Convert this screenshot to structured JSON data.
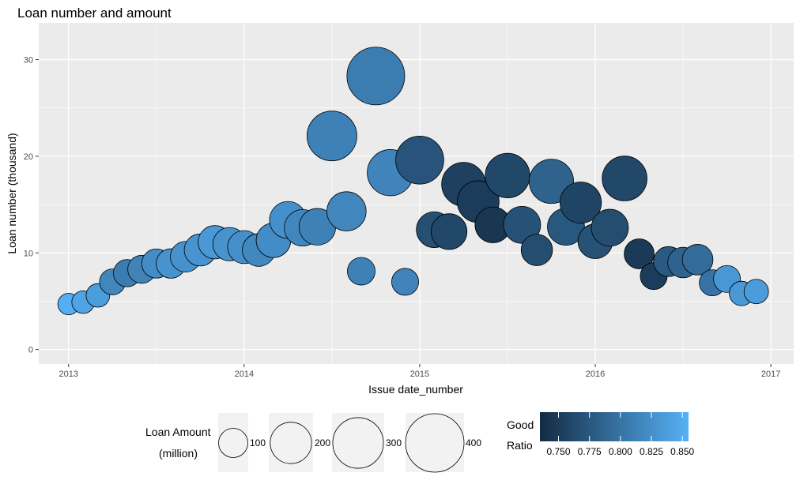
{
  "chart_data": {
    "type": "scatter",
    "title": "Loan number and amount",
    "xlabel": "Issue date_number",
    "ylabel": "Loan number (thousand)",
    "xlim": [
      2012.83,
      2017.13
    ],
    "ylim": [
      -1.5,
      33.8
    ],
    "x_ticks": [
      "2013",
      "2014",
      "2015",
      "2016",
      "2017"
    ],
    "y_ticks": [
      "0",
      "10",
      "20",
      "30"
    ],
    "grid": true,
    "size_legend": {
      "title_line1": "Loan Amount",
      "title_line2": "(million)",
      "values": [
        100,
        200,
        300,
        400
      ],
      "labels": [
        "100",
        "200",
        "300",
        "400"
      ]
    },
    "color_legend": {
      "title_line1": "Good",
      "title_line2": "Ratio",
      "min": 0.735,
      "max": 0.855,
      "low_color": "#132B43",
      "high_color": "#56B1F7",
      "ticks": [
        0.75,
        0.775,
        0.8,
        0.825,
        0.85
      ],
      "tick_labels": [
        "0.750",
        "0.775",
        "0.800",
        "0.825",
        "0.850"
      ]
    },
    "points": [
      {
        "x": 2013.0,
        "y": 4.7,
        "amount": 54,
        "ratio": 0.852
      },
      {
        "x": 2013.083,
        "y": 4.9,
        "amount": 60,
        "ratio": 0.843
      },
      {
        "x": 2013.167,
        "y": 5.6,
        "amount": 65,
        "ratio": 0.837
      },
      {
        "x": 2013.25,
        "y": 7.0,
        "amount": 78,
        "ratio": 0.817
      },
      {
        "x": 2013.333,
        "y": 7.9,
        "amount": 87,
        "ratio": 0.808
      },
      {
        "x": 2013.417,
        "y": 8.3,
        "amount": 92,
        "ratio": 0.814
      },
      {
        "x": 2013.5,
        "y": 8.9,
        "amount": 100,
        "ratio": 0.822
      },
      {
        "x": 2013.583,
        "y": 8.9,
        "amount": 102,
        "ratio": 0.828
      },
      {
        "x": 2013.667,
        "y": 9.6,
        "amount": 110,
        "ratio": 0.827
      },
      {
        "x": 2013.75,
        "y": 10.3,
        "amount": 120,
        "ratio": 0.829
      },
      {
        "x": 2013.833,
        "y": 11.1,
        "amount": 130,
        "ratio": 0.833
      },
      {
        "x": 2013.917,
        "y": 10.9,
        "amount": 130,
        "ratio": 0.828
      },
      {
        "x": 2014.0,
        "y": 10.6,
        "amount": 128,
        "ratio": 0.825
      },
      {
        "x": 2014.083,
        "y": 10.3,
        "amount": 126,
        "ratio": 0.818
      },
      {
        "x": 2014.167,
        "y": 11.3,
        "amount": 140,
        "ratio": 0.822
      },
      {
        "x": 2014.25,
        "y": 13.4,
        "amount": 160,
        "ratio": 0.825
      },
      {
        "x": 2014.333,
        "y": 12.6,
        "amount": 156,
        "ratio": 0.817
      },
      {
        "x": 2014.417,
        "y": 12.7,
        "amount": 157,
        "ratio": 0.812
      },
      {
        "x": 2014.5,
        "y": 22.1,
        "amount": 290,
        "ratio": 0.812
      },
      {
        "x": 2014.583,
        "y": 14.3,
        "amount": 180,
        "ratio": 0.817
      },
      {
        "x": 2014.667,
        "y": 8.1,
        "amount": 90,
        "ratio": 0.812
      },
      {
        "x": 2014.75,
        "y": 28.3,
        "amount": 390,
        "ratio": 0.808
      },
      {
        "x": 2014.833,
        "y": 18.3,
        "amount": 250,
        "ratio": 0.815
      },
      {
        "x": 2014.917,
        "y": 7.0,
        "amount": 85,
        "ratio": 0.815
      },
      {
        "x": 2015.0,
        "y": 19.6,
        "amount": 270,
        "ratio": 0.772
      },
      {
        "x": 2015.083,
        "y": 12.4,
        "amount": 150,
        "ratio": 0.767
      },
      {
        "x": 2015.167,
        "y": 12.2,
        "amount": 150,
        "ratio": 0.76
      },
      {
        "x": 2015.25,
        "y": 17.1,
        "amount": 225,
        "ratio": 0.755
      },
      {
        "x": 2015.333,
        "y": 15.3,
        "amount": 205,
        "ratio": 0.75
      },
      {
        "x": 2015.417,
        "y": 12.9,
        "amount": 150,
        "ratio": 0.745
      },
      {
        "x": 2015.5,
        "y": 18.0,
        "amount": 232,
        "ratio": 0.76
      },
      {
        "x": 2015.583,
        "y": 12.9,
        "amount": 160,
        "ratio": 0.77
      },
      {
        "x": 2015.667,
        "y": 10.3,
        "amount": 115,
        "ratio": 0.765
      },
      {
        "x": 2015.75,
        "y": 17.4,
        "amount": 230,
        "ratio": 0.785
      },
      {
        "x": 2015.833,
        "y": 12.7,
        "amount": 160,
        "ratio": 0.775
      },
      {
        "x": 2015.917,
        "y": 15.2,
        "amount": 200,
        "ratio": 0.757
      },
      {
        "x": 2016.0,
        "y": 11.2,
        "amount": 140,
        "ratio": 0.77
      },
      {
        "x": 2016.083,
        "y": 12.6,
        "amount": 160,
        "ratio": 0.765
      },
      {
        "x": 2016.167,
        "y": 17.7,
        "amount": 235,
        "ratio": 0.76
      },
      {
        "x": 2016.25,
        "y": 9.9,
        "amount": 105,
        "ratio": 0.748
      },
      {
        "x": 2016.333,
        "y": 7.6,
        "amount": 85,
        "ratio": 0.75
      },
      {
        "x": 2016.417,
        "y": 9.1,
        "amount": 105,
        "ratio": 0.777
      },
      {
        "x": 2016.5,
        "y": 9.0,
        "amount": 110,
        "ratio": 0.785
      },
      {
        "x": 2016.583,
        "y": 9.3,
        "amount": 110,
        "ratio": 0.792
      },
      {
        "x": 2016.667,
        "y": 6.9,
        "amount": 80,
        "ratio": 0.8
      },
      {
        "x": 2016.75,
        "y": 7.3,
        "amount": 85,
        "ratio": 0.832
      },
      {
        "x": 2016.833,
        "y": 5.8,
        "amount": 70,
        "ratio": 0.833
      },
      {
        "x": 2016.917,
        "y": 6.0,
        "amount": 70,
        "ratio": 0.836
      }
    ]
  }
}
